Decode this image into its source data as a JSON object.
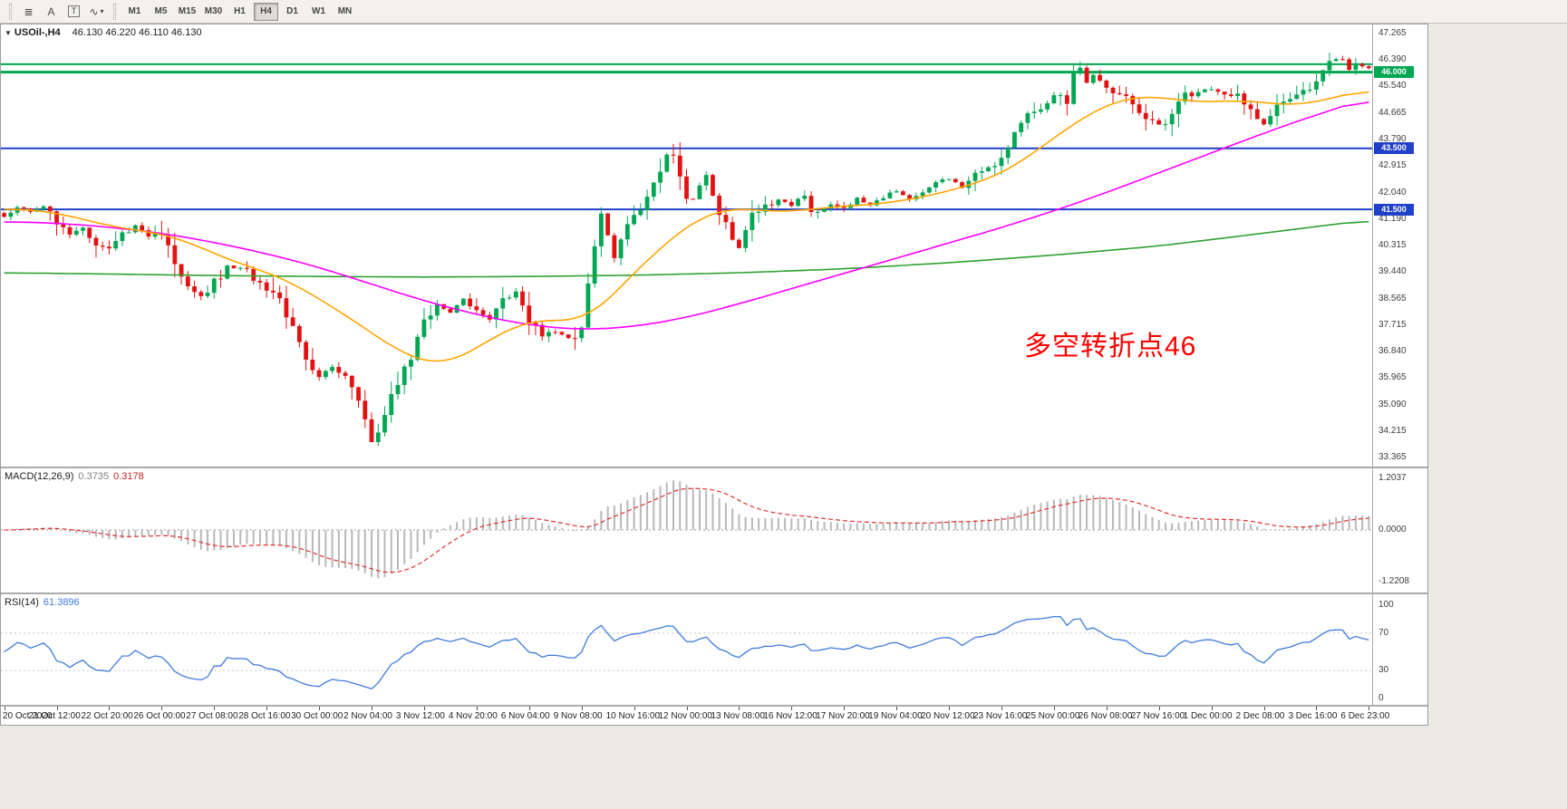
{
  "toolbar": {
    "icons": [
      {
        "name": "line-studies-icon",
        "glyph": "≣"
      },
      {
        "name": "text-label-icon",
        "glyph": "A"
      },
      {
        "name": "text-frame-icon",
        "glyph": "T"
      },
      {
        "name": "cycle-dropdown-icon",
        "glyph": "∿",
        "caret": "▾"
      }
    ],
    "timeframes": [
      "M1",
      "M5",
      "M15",
      "M30",
      "H1",
      "H4",
      "D1",
      "W1",
      "MN"
    ],
    "active_timeframe": "H4"
  },
  "main_chart": {
    "dropdown_arrow": "▼",
    "title": "USOil-,H4",
    "ohlc": "46.130 46.220 46.110 46.130",
    "annotation": {
      "text": "多空转折点46",
      "color": "#FF0000"
    },
    "price_scale": [
      "47.265",
      "46.390",
      "45.540",
      "44.665",
      "43.790",
      "42.915",
      "42.040",
      "41.190",
      "40.315",
      "39.440",
      "38.565",
      "37.715",
      "36.840",
      "35.965",
      "35.090",
      "34.215",
      "33.365"
    ],
    "hlines": [
      {
        "price": 46.26,
        "color": "#00A651",
        "width": 2
      },
      {
        "price": 46.0,
        "color": "#00A651",
        "width": 3,
        "label": "46.000"
      },
      {
        "price": 43.5,
        "color": "#2140C8",
        "width": 2,
        "label": "43.500"
      },
      {
        "price": 41.5,
        "color": "#2140C8",
        "width": 2,
        "label": "41.500"
      }
    ]
  },
  "macd_panel": {
    "label": "MACD(12,26,9)",
    "value_main": "0.3735",
    "value_signal": "0.3178",
    "scale": [
      "1.2037",
      "0.0000",
      "-1.2208"
    ],
    "colors": {
      "histogram": "#B8B8B8",
      "signal": "#E03030",
      "zero_line": "#999999",
      "value_main": "#808080",
      "value_signal": "#CC2222"
    }
  },
  "rsi_panel": {
    "label": "RSI(14)",
    "value": "61.3896",
    "scale": [
      "100",
      "70",
      "30",
      "0"
    ],
    "levels": [
      70,
      30
    ],
    "color": "#3E7BDB",
    "level_line_color": "#C8C8C8"
  },
  "time_axis": {
    "label_step": 8,
    "labels": [
      "20 Oct 2020",
      "21 Oct 12:00",
      "22 Oct 20:00",
      "26 Oct 00:00",
      "27 Oct 08:00",
      "28 Oct 16:00",
      "30 Oct 00:00",
      "2 Nov 04:00",
      "3 Nov 12:00",
      "4 Nov 20:00",
      "6 Nov 04:00",
      "9 Nov 08:00",
      "10 Nov 16:00",
      "12 Nov 00:00",
      "13 Nov 08:00",
      "16 Nov 12:00",
      "17 Nov 20:00",
      "19 Nov 04:00",
      "20 Nov 12:00",
      "23 Nov 16:00",
      "25 Nov 00:00",
      "26 Nov 08:00",
      "27 Nov 16:00",
      "1 Dec 00:00",
      "2 Dec 08:00",
      "3 Dec 16:00",
      "6 Dec 23:00"
    ]
  },
  "chart_data": {
    "type": "candlestick",
    "symbol": "USOil-",
    "timeframe": "H4",
    "n_candles": 209,
    "last_close": 46.13,
    "price_range": [
      33.365,
      47.265
    ],
    "up_color": "#00A651",
    "down_color": "#E31212",
    "close_path_anchors": [
      [
        0,
        41.3
      ],
      [
        2,
        41.55
      ],
      [
        4,
        41.45
      ],
      [
        6,
        41.6
      ],
      [
        8,
        41.15
      ],
      [
        10,
        40.65
      ],
      [
        12,
        40.9
      ],
      [
        14,
        40.35
      ],
      [
        16,
        40.15
      ],
      [
        18,
        40.7
      ],
      [
        20,
        40.95
      ],
      [
        22,
        40.65
      ],
      [
        24,
        40.75
      ],
      [
        25,
        40.3
      ],
      [
        26,
        39.55
      ],
      [
        28,
        38.9
      ],
      [
        30,
        38.65
      ],
      [
        32,
        39.1
      ],
      [
        34,
        39.55
      ],
      [
        36,
        39.65
      ],
      [
        38,
        39.3
      ],
      [
        40,
        38.95
      ],
      [
        42,
        38.45
      ],
      [
        44,
        37.6
      ],
      [
        46,
        36.5
      ],
      [
        48,
        36.0
      ],
      [
        50,
        36.35
      ],
      [
        52,
        35.9
      ],
      [
        54,
        35.3
      ],
      [
        55,
        34.6
      ],
      [
        56,
        33.95
      ],
      [
        57,
        34.3
      ],
      [
        58,
        34.9
      ],
      [
        60,
        35.75
      ],
      [
        62,
        36.6
      ],
      [
        64,
        37.85
      ],
      [
        66,
        38.4
      ],
      [
        68,
        38.1
      ],
      [
        70,
        38.55
      ],
      [
        72,
        38.2
      ],
      [
        74,
        37.95
      ],
      [
        76,
        38.45
      ],
      [
        78,
        38.7
      ],
      [
        80,
        37.95
      ],
      [
        82,
        37.35
      ],
      [
        84,
        37.5
      ],
      [
        86,
        37.25
      ],
      [
        88,
        37.6
      ],
      [
        89,
        39.1
      ],
      [
        90,
        40.25
      ],
      [
        91,
        41.3
      ],
      [
        92,
        40.6
      ],
      [
        93,
        39.95
      ],
      [
        94,
        40.45
      ],
      [
        96,
        41.35
      ],
      [
        98,
        41.9
      ],
      [
        100,
        42.85
      ],
      [
        101,
        43.3
      ],
      [
        102,
        43.1
      ],
      [
        103,
        42.6
      ],
      [
        104,
        42.0
      ],
      [
        105,
        41.85
      ],
      [
        106,
        42.3
      ],
      [
        107,
        42.6
      ],
      [
        108,
        41.9
      ],
      [
        110,
        41.0
      ],
      [
        111,
        40.45
      ],
      [
        112,
        40.25
      ],
      [
        113,
        40.75
      ],
      [
        114,
        41.3
      ],
      [
        116,
        41.55
      ],
      [
        118,
        41.8
      ],
      [
        120,
        41.6
      ],
      [
        122,
        42.0
      ],
      [
        123,
        41.45
      ],
      [
        124,
        41.35
      ],
      [
        126,
        41.65
      ],
      [
        128,
        41.55
      ],
      [
        130,
        41.85
      ],
      [
        132,
        41.6
      ],
      [
        134,
        41.9
      ],
      [
        136,
        42.1
      ],
      [
        138,
        41.85
      ],
      [
        140,
        42.15
      ],
      [
        142,
        42.4
      ],
      [
        144,
        42.5
      ],
      [
        146,
        42.25
      ],
      [
        148,
        42.7
      ],
      [
        150,
        42.95
      ],
      [
        152,
        43.15
      ],
      [
        154,
        43.9
      ],
      [
        156,
        44.6
      ],
      [
        158,
        44.9
      ],
      [
        160,
        45.2
      ],
      [
        162,
        45.05
      ],
      [
        163,
        45.9
      ],
      [
        164,
        46.1
      ],
      [
        165,
        45.65
      ],
      [
        166,
        45.8
      ],
      [
        168,
        45.55
      ],
      [
        170,
        45.2
      ],
      [
        172,
        45.0
      ],
      [
        174,
        44.6
      ],
      [
        176,
        44.25
      ],
      [
        177,
        44.2
      ],
      [
        178,
        44.7
      ],
      [
        180,
        45.2
      ],
      [
        182,
        45.4
      ],
      [
        184,
        45.45
      ],
      [
        186,
        45.3
      ],
      [
        188,
        45.2
      ],
      [
        190,
        44.75
      ],
      [
        192,
        44.3
      ],
      [
        193,
        44.55
      ],
      [
        194,
        44.9
      ],
      [
        196,
        45.1
      ],
      [
        198,
        45.4
      ],
      [
        200,
        45.7
      ],
      [
        202,
        46.35
      ],
      [
        204,
        46.45
      ],
      [
        205,
        46.1
      ],
      [
        206,
        46.2
      ],
      [
        207,
        46.18
      ],
      [
        208,
        46.13
      ]
    ],
    "ma_lines": [
      {
        "name": "ma-fast",
        "color": "#FFA500",
        "anchors": [
          [
            0,
            41.55
          ],
          [
            8,
            41.4
          ],
          [
            16,
            40.95
          ],
          [
            24,
            40.7
          ],
          [
            28,
            40.45
          ],
          [
            32,
            40.05
          ],
          [
            36,
            39.7
          ],
          [
            40,
            39.45
          ],
          [
            44,
            39.1
          ],
          [
            48,
            38.55
          ],
          [
            52,
            38.05
          ],
          [
            56,
            37.45
          ],
          [
            60,
            36.85
          ],
          [
            64,
            36.5
          ],
          [
            66,
            36.4
          ],
          [
            68,
            36.45
          ],
          [
            72,
            36.95
          ],
          [
            76,
            37.5
          ],
          [
            80,
            37.85
          ],
          [
            84,
            37.9
          ],
          [
            88,
            37.8
          ],
          [
            90,
            38.05
          ],
          [
            92,
            38.55
          ],
          [
            96,
            39.4
          ],
          [
            100,
            40.25
          ],
          [
            104,
            40.95
          ],
          [
            108,
            41.45
          ],
          [
            112,
            41.55
          ],
          [
            116,
            41.45
          ],
          [
            120,
            41.4
          ],
          [
            124,
            41.55
          ],
          [
            128,
            41.6
          ],
          [
            132,
            41.65
          ],
          [
            136,
            41.75
          ],
          [
            140,
            41.9
          ],
          [
            144,
            42.1
          ],
          [
            148,
            42.35
          ],
          [
            152,
            42.65
          ],
          [
            156,
            43.2
          ],
          [
            160,
            43.85
          ],
          [
            164,
            44.45
          ],
          [
            168,
            44.95
          ],
          [
            172,
            45.2
          ],
          [
            176,
            45.2
          ],
          [
            180,
            45.05
          ],
          [
            184,
            45.0
          ],
          [
            188,
            45.1
          ],
          [
            192,
            45.0
          ],
          [
            196,
            44.9
          ],
          [
            200,
            45.0
          ],
          [
            204,
            45.25
          ],
          [
            208,
            45.45
          ]
        ]
      },
      {
        "name": "ma-mid",
        "color": "#FF00FF",
        "anchors": [
          [
            0,
            41.1
          ],
          [
            8,
            41.05
          ],
          [
            16,
            40.92
          ],
          [
            24,
            40.72
          ],
          [
            32,
            40.42
          ],
          [
            40,
            40.05
          ],
          [
            48,
            39.6
          ],
          [
            56,
            39.05
          ],
          [
            64,
            38.5
          ],
          [
            72,
            38.05
          ],
          [
            80,
            37.7
          ],
          [
            88,
            37.55
          ],
          [
            96,
            37.65
          ],
          [
            104,
            37.95
          ],
          [
            112,
            38.4
          ],
          [
            120,
            38.9
          ],
          [
            128,
            39.4
          ],
          [
            136,
            39.9
          ],
          [
            144,
            40.4
          ],
          [
            152,
            40.9
          ],
          [
            160,
            41.45
          ],
          [
            168,
            42.05
          ],
          [
            176,
            42.7
          ],
          [
            184,
            43.35
          ],
          [
            192,
            44.0
          ],
          [
            200,
            44.6
          ],
          [
            208,
            45.15
          ]
        ]
      },
      {
        "name": "ma-slow",
        "color": "#2FA12F",
        "anchors": [
          [
            0,
            39.42
          ],
          [
            16,
            39.38
          ],
          [
            32,
            39.33
          ],
          [
            48,
            39.3
          ],
          [
            64,
            39.28
          ],
          [
            80,
            39.3
          ],
          [
            96,
            39.34
          ],
          [
            112,
            39.42
          ],
          [
            128,
            39.55
          ],
          [
            144,
            39.75
          ],
          [
            160,
            40.0
          ],
          [
            176,
            40.3
          ],
          [
            192,
            40.72
          ],
          [
            208,
            41.15
          ]
        ]
      }
    ]
  }
}
